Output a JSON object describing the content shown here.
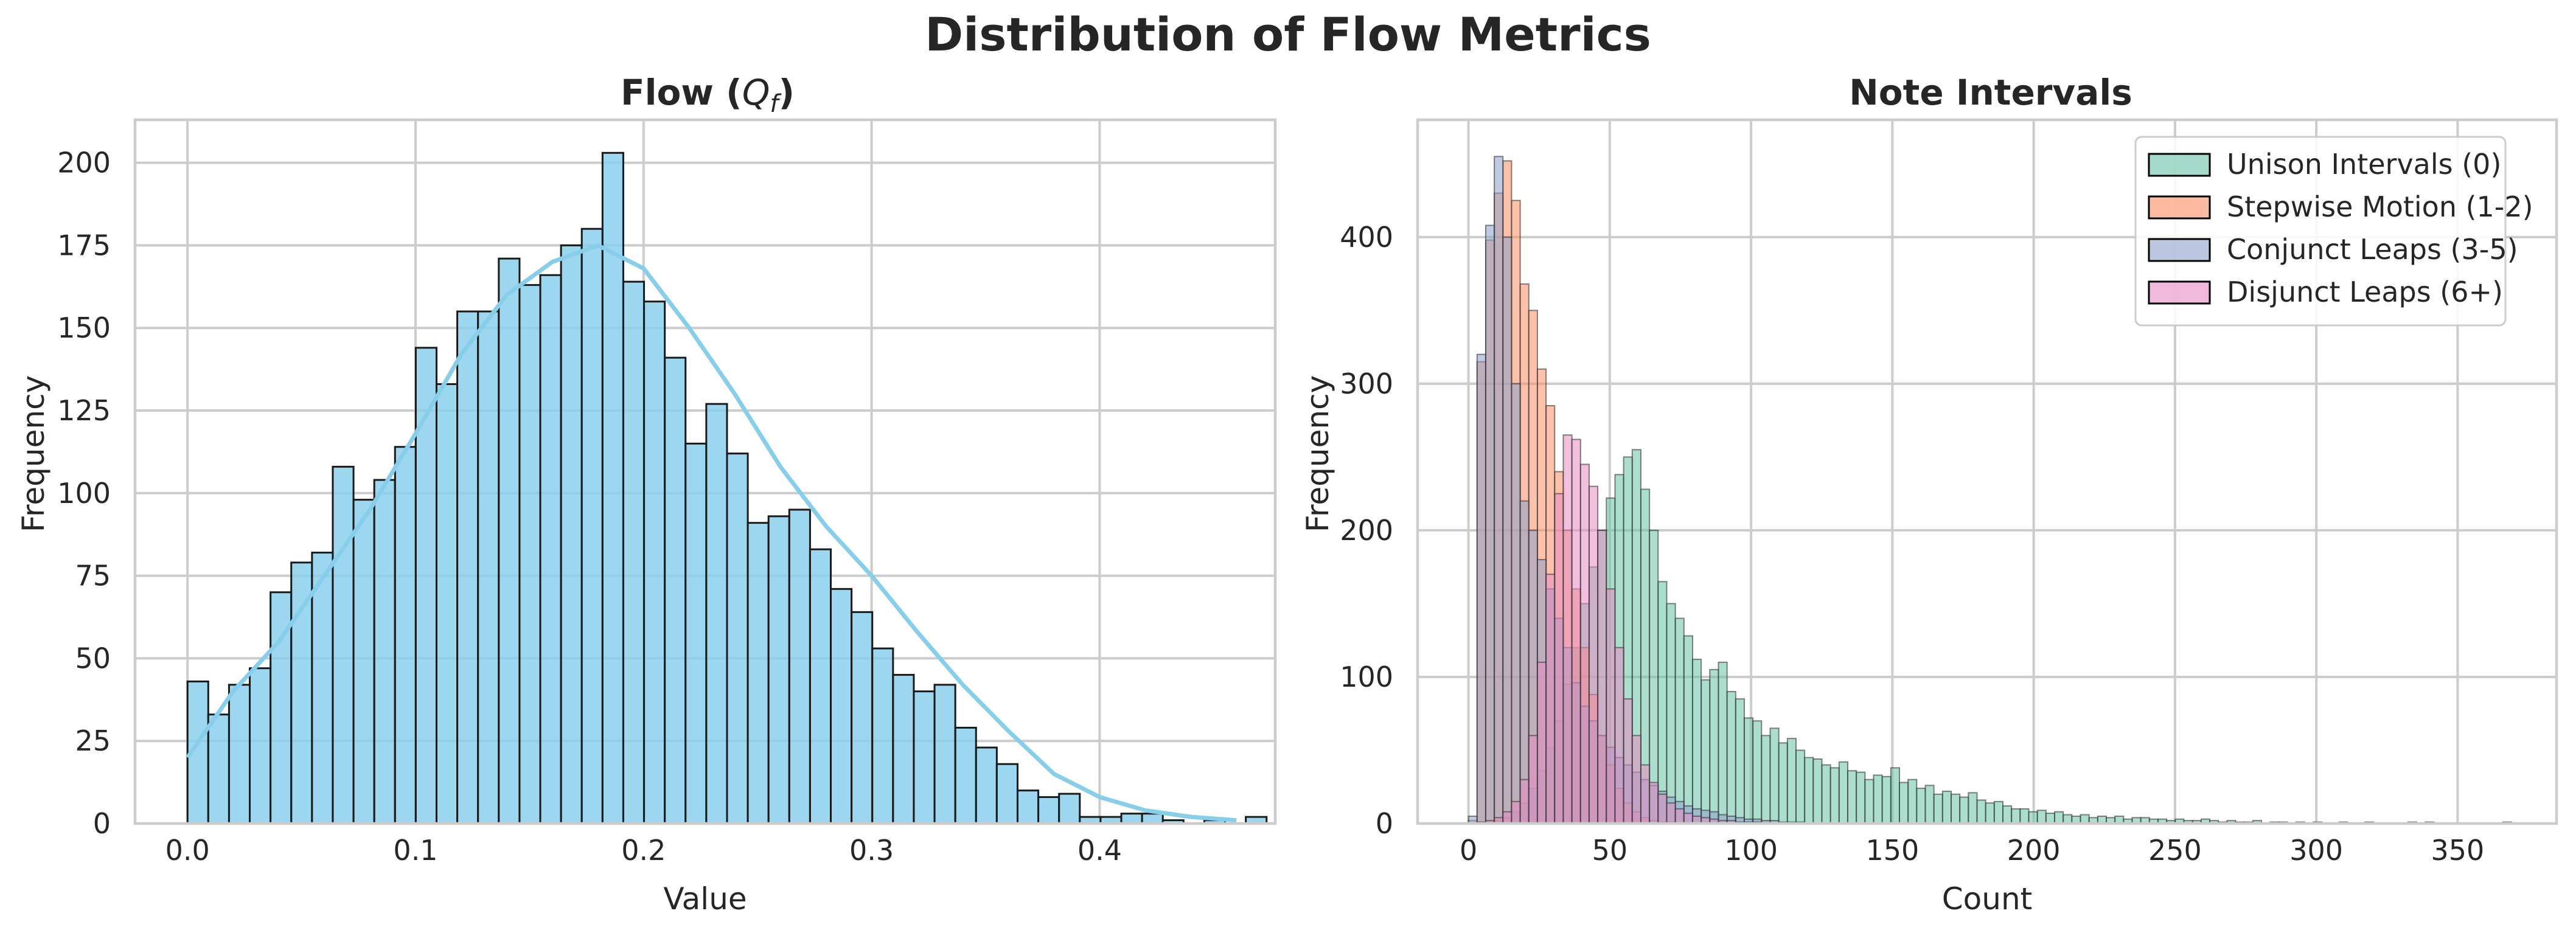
{
  "figure": {
    "suptitle": "Distribution of Flow Metrics"
  },
  "chart_data": [
    {
      "type": "bar",
      "title": "Flow (Q_f)",
      "title_main": "Flow (",
      "title_var": "Q",
      "title_sub": "f",
      "title_close": ")",
      "xlabel": "Value",
      "ylabel": "Frequency",
      "xlim": [
        -0.023,
        0.477
      ],
      "ylim": [
        0,
        213
      ],
      "xticks": [
        0.0,
        0.1,
        0.2,
        0.3,
        0.4
      ],
      "xtick_labels": [
        "0.0",
        "0.1",
        "0.2",
        "0.3",
        "0.4"
      ],
      "yticks": [
        0,
        25,
        50,
        75,
        100,
        125,
        150,
        175,
        200
      ],
      "ytick_labels": [
        "0",
        "25",
        "50",
        "75",
        "100",
        "125",
        "150",
        "175",
        "200"
      ],
      "grid": true,
      "bar_color": "#87CEEB",
      "kde_color": "#87CEEB",
      "bin_start": 0.0,
      "bin_width": 0.0091,
      "values": [
        43,
        33,
        42,
        47,
        70,
        79,
        82,
        108,
        98,
        104,
        114,
        144,
        133,
        155,
        155,
        171,
        163,
        166,
        175,
        180,
        203,
        164,
        158,
        141,
        115,
        127,
        112,
        91,
        93,
        95,
        83,
        71,
        64,
        53,
        45,
        40,
        42,
        29,
        23,
        18,
        10,
        8,
        9,
        2,
        2,
        3,
        3,
        1,
        0,
        1,
        0,
        2
      ],
      "kde_x": [
        0.0,
        0.02,
        0.04,
        0.06,
        0.08,
        0.1,
        0.12,
        0.14,
        0.16,
        0.18,
        0.2,
        0.22,
        0.24,
        0.26,
        0.28,
        0.3,
        0.32,
        0.34,
        0.36,
        0.38,
        0.4,
        0.42,
        0.44,
        0.46
      ],
      "kde_y": [
        20,
        40,
        55,
        75,
        95,
        118,
        142,
        160,
        170,
        175,
        168,
        150,
        130,
        108,
        90,
        75,
        58,
        42,
        28,
        15,
        8,
        4,
        2,
        1
      ]
    },
    {
      "type": "bar",
      "title": "Note Intervals",
      "xlabel": "Count",
      "ylabel": "Frequency",
      "xlim": [
        -18,
        385
      ],
      "ylim": [
        0,
        480
      ],
      "xticks": [
        0,
        50,
        100,
        150,
        200,
        250,
        300,
        350
      ],
      "xtick_labels": [
        "0",
        "50",
        "100",
        "150",
        "200",
        "250",
        "300",
        "350"
      ],
      "yticks": [
        0,
        100,
        200,
        300,
        400
      ],
      "ytick_labels": [
        "0",
        "100",
        "200",
        "300",
        "400"
      ],
      "grid": true,
      "legend": "top-right",
      "bin_width": 3.05,
      "series": [
        {
          "name": "Unison Intervals (0)",
          "color": "#66C2A5",
          "bin_start": 0,
          "values": [
            0,
            0,
            1,
            2,
            4,
            8,
            14,
            24,
            36,
            52,
            70,
            95,
            120,
            150,
            175,
            200,
            222,
            238,
            250,
            255,
            228,
            200,
            165,
            150,
            140,
            128,
            112,
            98,
            105,
            110,
            90,
            85,
            72,
            70,
            60,
            65,
            55,
            58,
            50,
            45,
            44,
            40,
            38,
            42,
            36,
            35,
            30,
            33,
            32,
            38,
            28,
            30,
            24,
            26,
            20,
            22,
            20,
            18,
            21,
            16,
            14,
            15,
            12,
            10,
            10,
            8,
            9,
            7,
            8,
            6,
            5,
            6,
            4,
            5,
            4,
            5,
            3,
            4,
            4,
            3,
            3,
            2,
            3,
            2,
            2,
            3,
            2,
            1,
            2,
            1,
            1,
            2,
            0,
            1,
            1,
            0,
            1,
            0,
            1,
            0,
            0,
            1,
            0,
            0,
            1,
            0,
            0,
            0,
            0,
            1,
            0,
            1,
            0,
            0,
            0,
            0,
            0,
            0,
            0,
            0,
            1
          ]
        },
        {
          "name": "Stepwise Motion (1-2)",
          "color": "#FC8D62",
          "bin_start": 0,
          "values": [
            2,
            315,
            398,
            430,
            452,
            425,
            368,
            350,
            310,
            285,
            240,
            200,
            160,
            120,
            88,
            60,
            40,
            24,
            14,
            8,
            4,
            2,
            1,
            1
          ]
        },
        {
          "name": "Conjunct Leaps (3-5)",
          "color": "#8DA0CB",
          "bin_start": 0,
          "values": [
            5,
            320,
            408,
            455,
            400,
            300,
            220,
            200,
            180,
            160,
            140,
            120,
            96,
            80,
            70,
            60,
            52,
            45,
            40,
            35,
            30,
            26,
            22,
            18,
            15,
            12,
            10,
            9,
            8,
            6,
            5,
            4,
            3,
            3,
            2,
            2,
            1,
            1,
            1
          ]
        },
        {
          "name": "Disjunct Leaps (6+)",
          "color": "#E78AC3",
          "bin_start": 0,
          "values": [
            0,
            1,
            2,
            4,
            8,
            15,
            30,
            60,
            110,
            170,
            225,
            265,
            262,
            245,
            230,
            200,
            160,
            120,
            85,
            60,
            40,
            28,
            20,
            14,
            10,
            7,
            5,
            4,
            3,
            2,
            2,
            1,
            1,
            1
          ]
        }
      ]
    }
  ]
}
